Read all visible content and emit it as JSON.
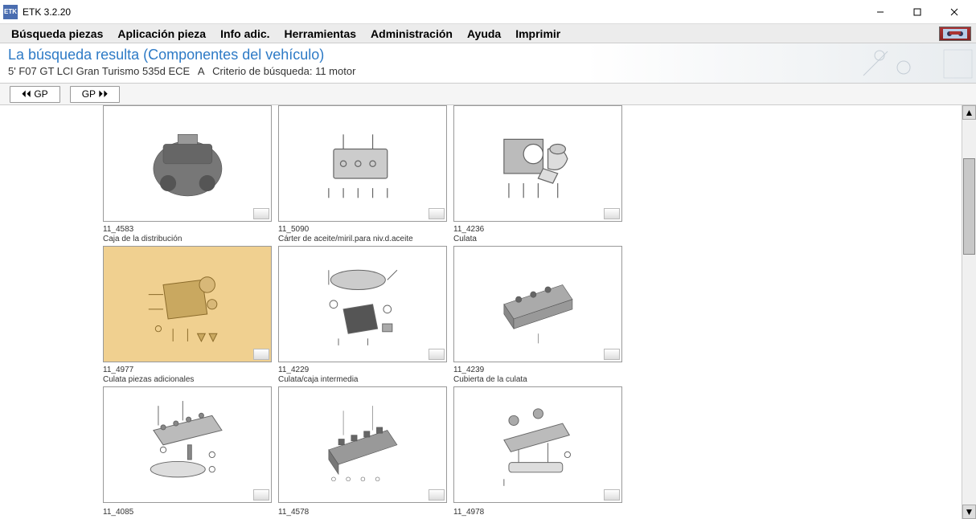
{
  "titlebar": {
    "text": "ETK 3.2.20",
    "icon_text": "ETK"
  },
  "menubar": {
    "items": [
      "Búsqueda piezas",
      "Aplicación pieza",
      "Info adic.",
      "Herramientas",
      "Administración",
      "Ayuda",
      "Imprimir"
    ]
  },
  "header": {
    "title": "La búsqueda resulta (Componentes del vehículo)",
    "vehicle": "5' F07 GT LCI Gran Turismo 535d ECE",
    "variant": "A",
    "criteria_label": "Criterio de búsqueda: 11 motor"
  },
  "navbar": {
    "prev": "⏴⏴ GP",
    "next": "GP ⏵⏵"
  },
  "parts": {
    "r0": [
      {
        "code": "",
        "desc": ""
      },
      {
        "code": "",
        "desc": ""
      },
      {
        "code": "",
        "desc": ""
      }
    ],
    "r1": [
      {
        "code": "11_4583",
        "desc": "Caja de la distribución",
        "selected": true
      },
      {
        "code": "11_5090",
        "desc": "Cárter de aceite/miril.para niv.d.aceite"
      },
      {
        "code": "11_4236",
        "desc": "Culata"
      }
    ],
    "r2": [
      {
        "code": "11_4977",
        "desc": "Culata piezas adicionales"
      },
      {
        "code": "11_4229",
        "desc": "Culata/caja intermedia"
      },
      {
        "code": "11_4239",
        "desc": "Cubierta de la culata"
      }
    ],
    "r3": [
      {
        "code": "11_4085",
        "desc": ""
      },
      {
        "code": "11_4578",
        "desc": ""
      },
      {
        "code": "11_4978",
        "desc": ""
      }
    ]
  },
  "scroll": {
    "thumb_top_pct": 10,
    "thumb_height_pct": 25
  },
  "colors": {
    "menu_bg": "#ececec",
    "header_title": "#2d7ac6",
    "selected_bg": "#f0d090",
    "part_border": "#999999"
  }
}
